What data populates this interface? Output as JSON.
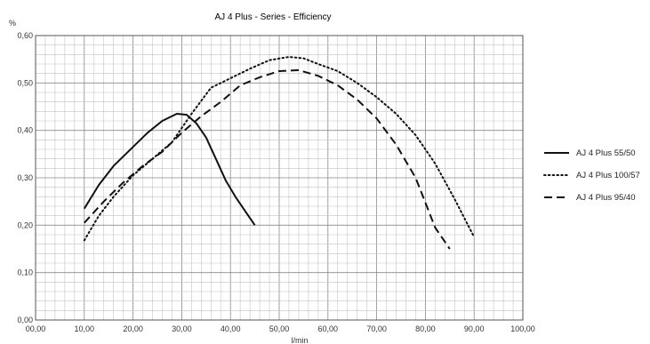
{
  "chart_data": {
    "type": "line",
    "title": "AJ 4 Plus - Series - Efficiency",
    "ylabel": "%",
    "xlabel": "l/min",
    "xlim": [
      0,
      100
    ],
    "ylim": [
      0,
      0.6
    ],
    "x_ticks": [
      "00,00",
      "10,00",
      "20,00",
      "30,00",
      "40,00",
      "50,00",
      "60,00",
      "70,00",
      "80,00",
      "90,00",
      "100,00"
    ],
    "y_ticks": [
      "0,00",
      "0,10",
      "0,20",
      "0,30",
      "0,40",
      "0,50",
      "0,60"
    ],
    "grid": true,
    "legend_position": "right",
    "series": [
      {
        "name": "AJ 4 Plus 55/50",
        "style": "solid",
        "color": "#111111",
        "points": [
          [
            10,
            0.235
          ],
          [
            13,
            0.285
          ],
          [
            16,
            0.325
          ],
          [
            20,
            0.365
          ],
          [
            23,
            0.395
          ],
          [
            26,
            0.42
          ],
          [
            29,
            0.435
          ],
          [
            31,
            0.433
          ],
          [
            33,
            0.415
          ],
          [
            35,
            0.385
          ],
          [
            37,
            0.34
          ],
          [
            39,
            0.295
          ],
          [
            41,
            0.26
          ],
          [
            43,
            0.23
          ],
          [
            45,
            0.2
          ]
        ]
      },
      {
        "name": "AJ 4 Plus 100/57",
        "style": "dotted",
        "color": "#111111",
        "points": [
          [
            10,
            0.168
          ],
          [
            13,
            0.22
          ],
          [
            16,
            0.26
          ],
          [
            20,
            0.305
          ],
          [
            24,
            0.34
          ],
          [
            28,
            0.375
          ],
          [
            32,
            0.435
          ],
          [
            36,
            0.49
          ],
          [
            40,
            0.51
          ],
          [
            44,
            0.53
          ],
          [
            48,
            0.548
          ],
          [
            52,
            0.555
          ],
          [
            55,
            0.552
          ],
          [
            58,
            0.54
          ],
          [
            62,
            0.525
          ],
          [
            66,
            0.5
          ],
          [
            70,
            0.47
          ],
          [
            74,
            0.435
          ],
          [
            78,
            0.39
          ],
          [
            82,
            0.33
          ],
          [
            86,
            0.255
          ],
          [
            90,
            0.175
          ]
        ]
      },
      {
        "name": "AJ 4 Plus  95/40",
        "style": "dashed",
        "color": "#111111",
        "points": [
          [
            10,
            0.205
          ],
          [
            14,
            0.25
          ],
          [
            18,
            0.29
          ],
          [
            22,
            0.325
          ],
          [
            26,
            0.355
          ],
          [
            30,
            0.395
          ],
          [
            34,
            0.43
          ],
          [
            38,
            0.46
          ],
          [
            42,
            0.495
          ],
          [
            46,
            0.512
          ],
          [
            50,
            0.525
          ],
          [
            54,
            0.527
          ],
          [
            58,
            0.515
          ],
          [
            62,
            0.495
          ],
          [
            66,
            0.465
          ],
          [
            70,
            0.425
          ],
          [
            74,
            0.37
          ],
          [
            78,
            0.3
          ],
          [
            82,
            0.195
          ],
          [
            85,
            0.15
          ]
        ]
      }
    ]
  }
}
